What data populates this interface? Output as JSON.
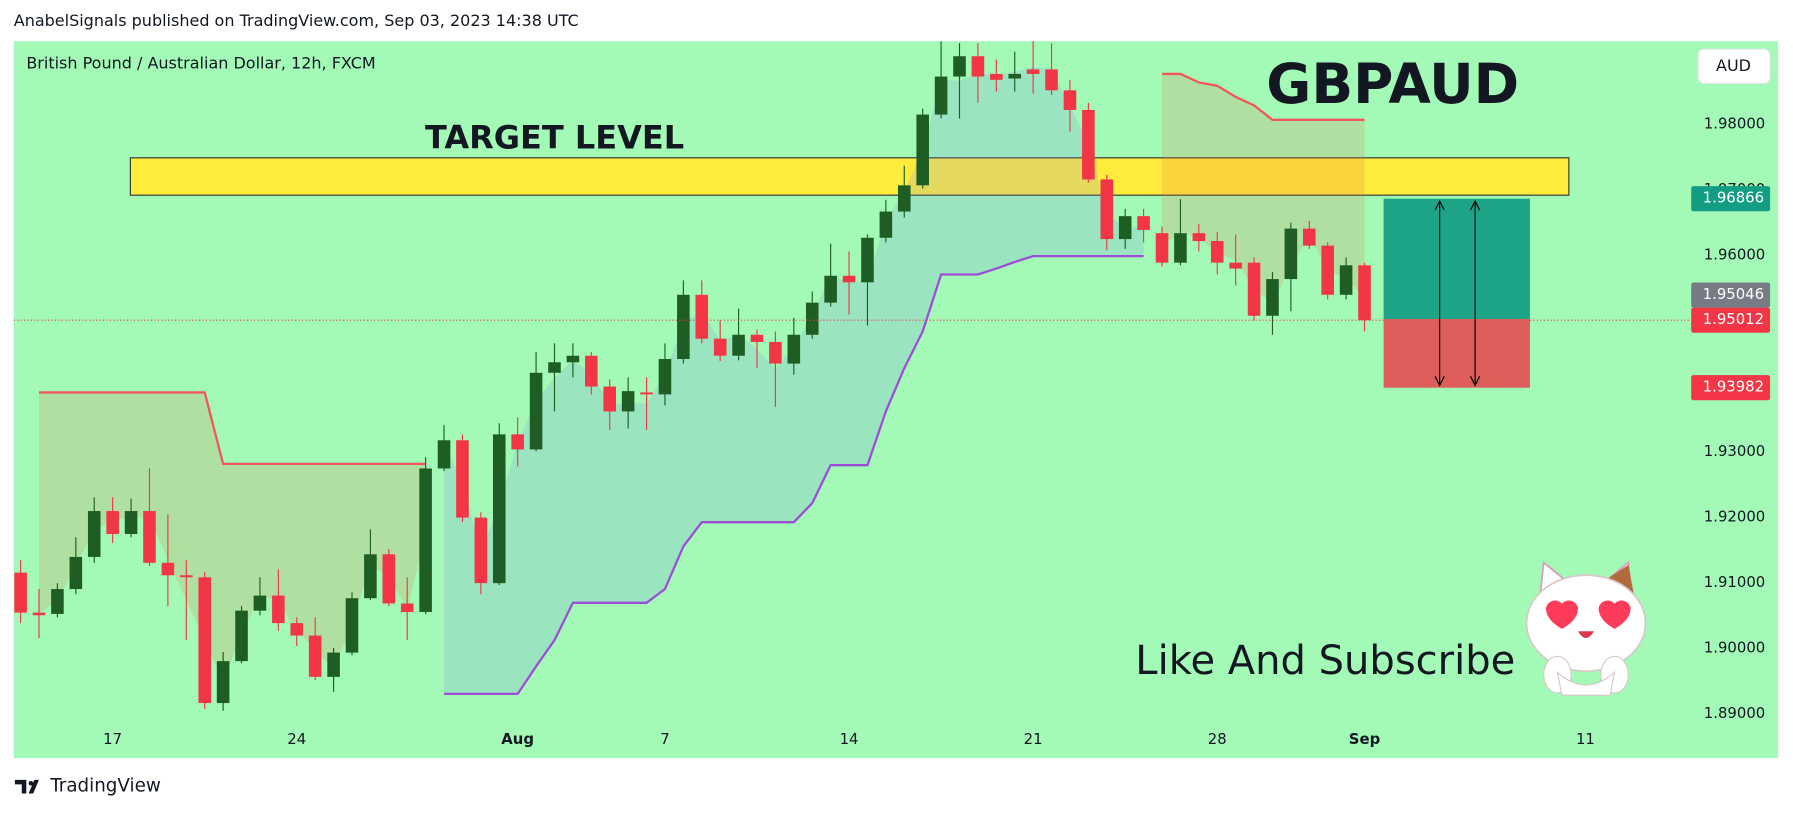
{
  "header": "AnabelSignals published on TradingView.com, Sep 03, 2023 14:38 UTC",
  "footer": "TradingView",
  "chart_data": {
    "type": "candlestick",
    "title": "British Pound / Australian Dollar, 12h, FXCM",
    "currency": "AUD",
    "annotations": {
      "symbol": "GBPAUD",
      "cta": "Like And Subscribe"
    },
    "categories": [
      null,
      null,
      null,
      null,
      null,
      "17",
      null,
      null,
      null,
      null,
      null,
      null,
      null,
      null,
      null,
      "24",
      null,
      null,
      null,
      null,
      null,
      null,
      null,
      null,
      null,
      null,
      null,
      "Aug",
      null,
      null,
      null,
      null,
      null,
      null,
      null,
      "7",
      null,
      null,
      null,
      null,
      null,
      null,
      null,
      null,
      null,
      "14",
      null,
      null,
      null,
      null,
      null,
      null,
      null,
      null,
      null,
      "21",
      null,
      null,
      null,
      null,
      null,
      null,
      null,
      null,
      null,
      "28",
      null,
      null,
      null,
      null,
      null,
      null,
      null,
      "Sep",
      null,
      null,
      null,
      null,
      null,
      null,
      null,
      null,
      null,
      null,
      null,
      "11"
    ],
    "open": [
      1.9116,
      1.9055,
      1.9053,
      1.9091,
      1.914,
      1.921,
      1.9175,
      1.921,
      1.9131,
      1.9112,
      1.9109,
      1.8917,
      1.8981,
      1.9058,
      1.9081,
      1.9039,
      1.902,
      1.8957,
      1.8994,
      1.9077,
      1.9144,
      1.9069,
      1.9056,
      1.9275,
      1.9318,
      1.92,
      1.91,
      1.9327,
      1.9304,
      1.9421,
      1.9437,
      1.9447,
      1.94,
      1.9362,
      1.9391,
      1.9388,
      1.9442,
      1.954,
      1.9473,
      1.9447,
      1.9479,
      1.9468,
      1.9435,
      1.9479,
      1.9528,
      1.9569,
      1.9559,
      1.9627,
      1.9667,
      1.9707,
      1.9815,
      1.9873,
      1.9904,
      1.9877,
      1.987,
      1.9884,
      1.9884,
      1.9852,
      1.9822,
      1.9716,
      1.9625,
      1.966,
      1.9634,
      1.9589,
      1.9634,
      1.9622,
      1.9589,
      1.9589,
      1.9508,
      1.9564,
      1.9641,
      1.9615,
      1.954,
      1.9585,
      null,
      null,
      null,
      null,
      null,
      null,
      null,
      null,
      null,
      null,
      null,
      null
    ],
    "high": [
      1.9135,
      1.9091,
      1.91,
      1.917,
      1.9231,
      1.9231,
      1.9229,
      1.9275,
      1.9205,
      1.9135,
      1.9117,
      1.8995,
      1.9065,
      1.9109,
      1.9121,
      1.9048,
      1.9048,
      1.9001,
      1.9086,
      1.9182,
      1.9152,
      1.9109,
      1.9292,
      1.9341,
      1.9327,
      1.9208,
      1.9344,
      1.9353,
      1.9453,
      1.9466,
      1.9466,
      1.9453,
      1.9411,
      1.9414,
      1.9414,
      1.9466,
      1.9562,
      1.9562,
      1.9501,
      1.9519,
      1.9487,
      1.9484,
      1.9505,
      1.9545,
      1.9618,
      1.9606,
      1.9632,
      1.9685,
      1.9737,
      1.9824,
      1.9927,
      1.9924,
      1.9924,
      1.9899,
      1.9911,
      1.9927,
      1.9924,
      1.9868,
      1.9833,
      1.9723,
      1.9671,
      1.9671,
      1.9644,
      1.9686,
      1.9648,
      1.9636,
      1.9632,
      1.9597,
      1.9575,
      1.965,
      1.9653,
      1.962,
      1.9597,
      1.9589,
      null,
      null,
      null,
      null,
      null,
      null,
      null,
      null,
      null,
      null,
      null,
      null
    ],
    "low": [
      1.9039,
      1.9016,
      1.9048,
      1.9083,
      1.9131,
      1.9161,
      1.917,
      1.9126,
      1.9065,
      1.9013,
      1.8908,
      1.8905,
      1.8978,
      1.9051,
      1.9027,
      1.9004,
      1.8952,
      1.8934,
      1.899,
      1.9074,
      1.9065,
      1.9013,
      1.9053,
      1.9271,
      1.9193,
      1.9083,
      1.9097,
      1.9278,
      1.9301,
      1.9362,
      1.9414,
      1.9388,
      1.9334,
      1.9336,
      1.9334,
      1.9371,
      1.9435,
      1.9466,
      1.9439,
      1.944,
      1.9428,
      1.9369,
      1.9418,
      1.9473,
      1.9522,
      1.951,
      1.9493,
      1.962,
      1.9658,
      1.9702,
      1.9809,
      1.9809,
      1.9833,
      1.985,
      1.985,
      1.9847,
      1.9845,
      1.9789,
      1.9711,
      1.9608,
      1.961,
      1.962,
      1.9583,
      1.9585,
      1.9606,
      1.9571,
      1.9554,
      1.9501,
      1.9479,
      1.9515,
      1.961,
      1.9533,
      1.9533,
      1.9484,
      null,
      null,
      null,
      null,
      null,
      null,
      null,
      null,
      null,
      null,
      null,
      null
    ],
    "close": [
      1.9055,
      1.9051,
      1.9091,
      1.914,
      1.921,
      1.9175,
      1.921,
      1.9131,
      1.9112,
      1.9109,
      1.8917,
      1.8981,
      1.9058,
      1.9081,
      1.9039,
      1.902,
      1.8957,
      1.8994,
      1.9077,
      1.9144,
      1.9069,
      1.9056,
      1.9275,
      1.9318,
      1.92,
      1.91,
      1.9327,
      1.9304,
      1.9421,
      1.9437,
      1.9447,
      1.94,
      1.9362,
      1.9393,
      1.9388,
      1.9442,
      1.954,
      1.9473,
      1.9447,
      1.9479,
      1.9468,
      1.9435,
      1.9479,
      1.9528,
      1.9569,
      1.9559,
      1.9627,
      1.9667,
      1.9707,
      1.9815,
      1.9873,
      1.9904,
      1.9873,
      1.9868,
      1.9877,
      1.9877,
      1.9852,
      1.9822,
      1.9716,
      1.9625,
      1.966,
      1.9639,
      1.9589,
      1.9634,
      1.9622,
      1.9589,
      1.958,
      1.9508,
      1.9564,
      1.9641,
      1.9615,
      1.954,
      1.9585,
      1.95012,
      null,
      null,
      null,
      null,
      null,
      null,
      null,
      null,
      null,
      null,
      null,
      null
    ],
    "up_color": "#1e5e25",
    "down_color": "#f23645",
    "ylim": [
      1.8833,
      1.9927
    ],
    "yticks": [
      {
        "value": 1.98,
        "label": "1.98000"
      },
      {
        "value": 1.97,
        "label": "1.97000"
      },
      {
        "value": 1.96,
        "label": "1.96000"
      },
      {
        "value": 1.93,
        "label": "1.93000"
      },
      {
        "value": 1.92,
        "label": "1.92000"
      },
      {
        "value": 1.91,
        "label": "1.91000"
      },
      {
        "value": 1.9,
        "label": "1.90000"
      },
      {
        "value": 1.89,
        "label": "1.89000"
      }
    ],
    "target_zone": {
      "label": "TARGET LEVEL",
      "top": 1.9749,
      "bottom": 1.9692,
      "color": "#ffeb3b"
    },
    "supertrend": {
      "resistance": [
        null,
        1.9391,
        1.9391,
        1.9391,
        1.9391,
        1.9391,
        1.9391,
        1.9391,
        1.9391,
        1.9391,
        1.9391,
        1.9282,
        1.9282,
        1.9282,
        1.9282,
        1.9282,
        1.9282,
        1.9282,
        1.9282,
        1.9282,
        1.9282,
        1.9282,
        1.9282,
        null,
        null,
        null,
        null,
        null,
        null,
        null,
        null,
        null,
        null,
        null,
        null,
        null,
        null,
        null,
        null,
        null,
        null,
        null,
        null,
        null,
        null,
        null,
        null,
        null,
        null,
        null,
        null,
        null,
        null,
        null,
        null,
        null,
        null,
        null,
        null,
        null,
        null,
        null,
        1.9877,
        1.9877,
        1.9864,
        1.9859,
        1.9842,
        1.9829,
        1.9807,
        1.9807,
        1.9807,
        1.9807,
        1.9807,
        1.9807,
        null,
        null,
        null,
        null,
        null,
        null,
        null,
        null,
        null,
        null,
        null,
        null
      ],
      "support": [
        null,
        null,
        null,
        null,
        null,
        null,
        null,
        null,
        null,
        null,
        null,
        null,
        null,
        null,
        null,
        null,
        null,
        null,
        null,
        null,
        null,
        null,
        null,
        1.8931,
        1.8931,
        1.8931,
        1.8931,
        1.8931,
        1.8973,
        1.9013,
        1.907,
        1.907,
        1.907,
        1.907,
        1.907,
        1.9091,
        1.9156,
        1.9193,
        1.9193,
        1.9193,
        1.9193,
        1.9193,
        1.9193,
        1.9222,
        1.928,
        1.928,
        1.928,
        1.9362,
        1.9428,
        1.9484,
        1.9571,
        1.9571,
        1.9571,
        1.958,
        1.959,
        1.9599,
        1.9599,
        1.9599,
        1.9599,
        1.9599,
        1.9599,
        1.9599,
        null,
        null,
        null,
        null,
        null,
        null,
        null,
        null,
        null,
        null,
        null,
        null,
        null,
        null,
        null,
        null,
        null,
        null,
        null,
        null,
        null,
        null,
        null,
        null
      ],
      "resistance_color": "#f0575d",
      "support_color": "#9c4fd6"
    },
    "position": {
      "target": 1.96866,
      "entry": 1.9503,
      "stop": 1.93982,
      "profit_color": "#17a086",
      "loss_color": "#e05555"
    },
    "price_labels": [
      {
        "value": 1.96866,
        "color": "#139e84"
      },
      {
        "value": 1.95046,
        "color": "#787b86"
      },
      {
        "value": 1.95012,
        "color": "#f23645"
      },
      {
        "value": 1.93982,
        "color": "#f23645"
      }
    ]
  }
}
